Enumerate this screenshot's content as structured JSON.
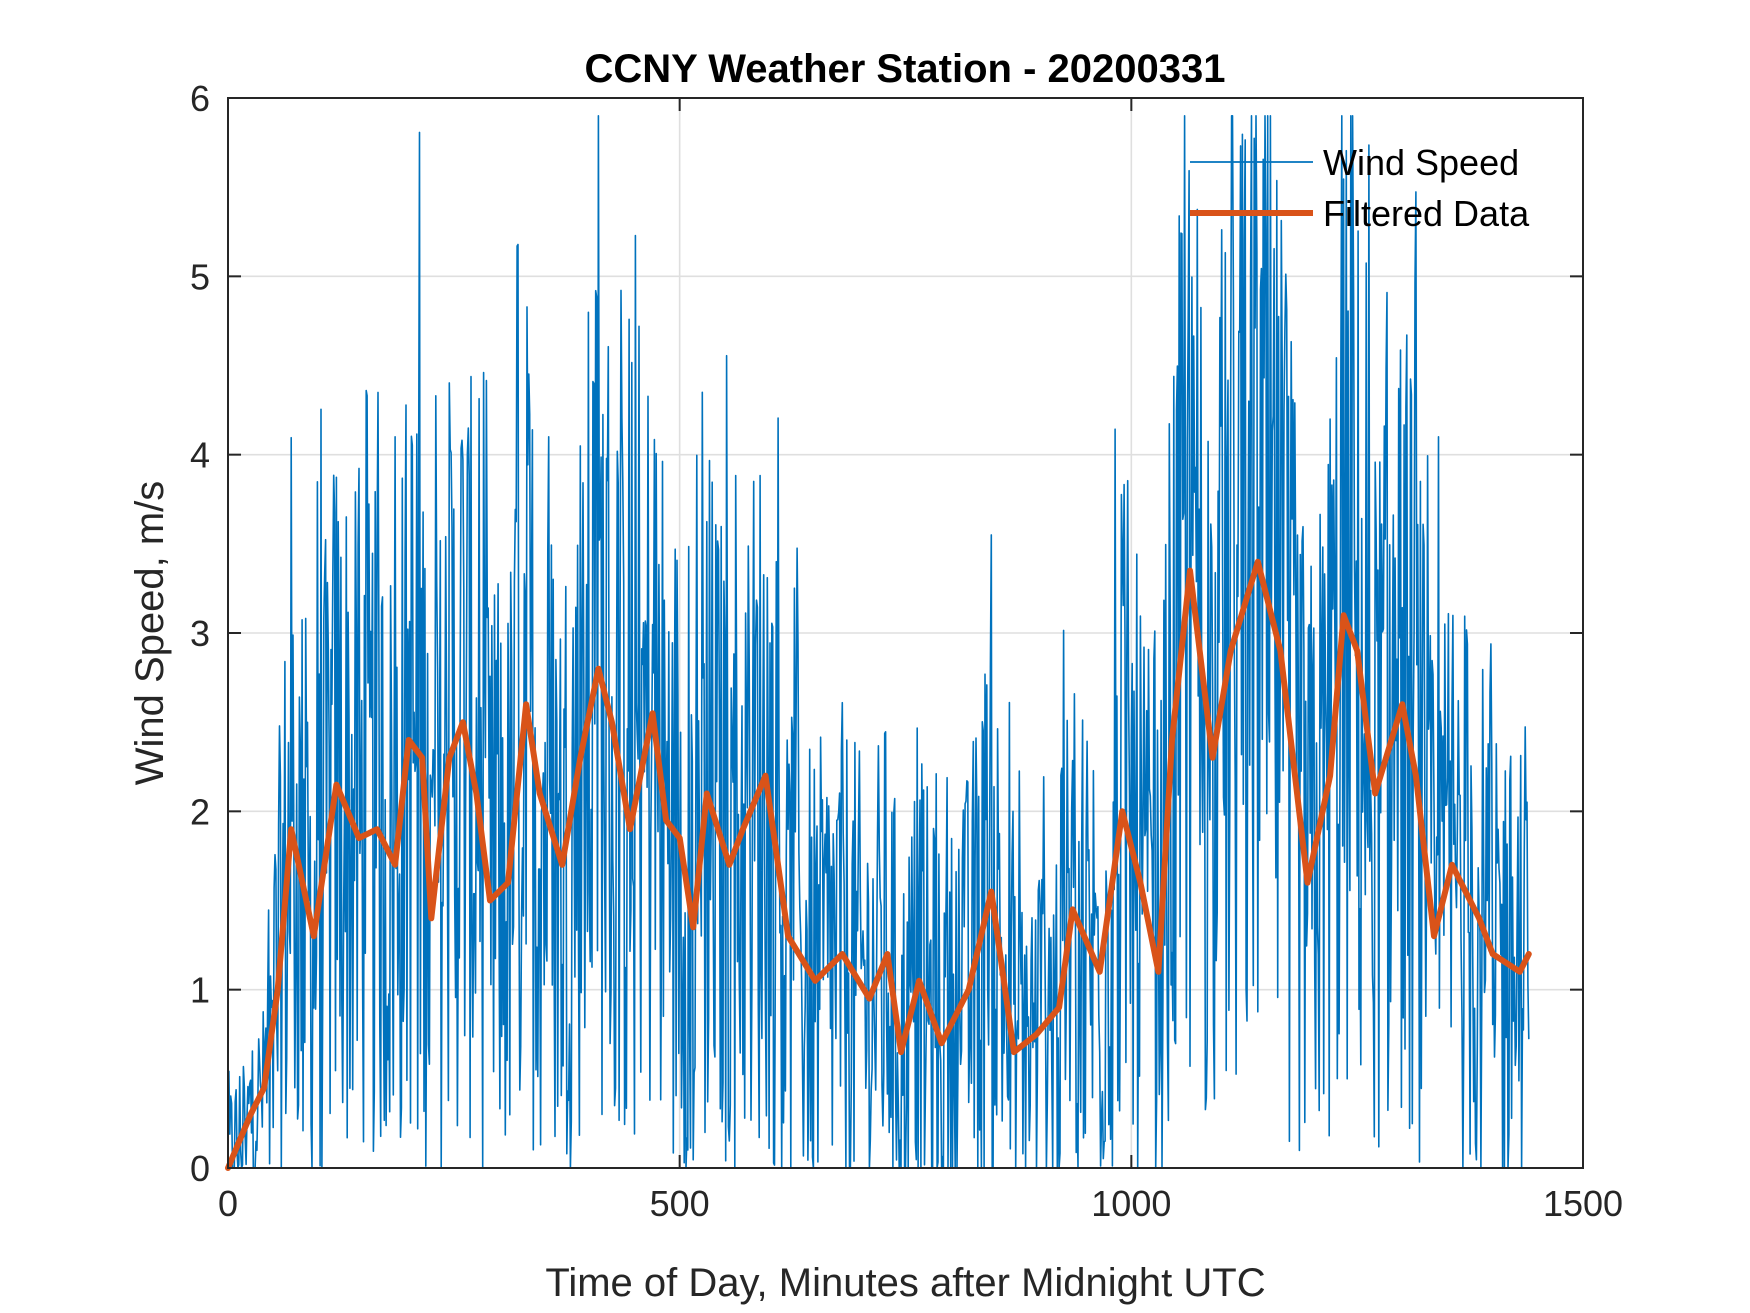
{
  "chart_data": {
    "type": "line",
    "title": "CCNY Weather Station - 20200331",
    "xlabel": "Time of Day, Minutes after Midnight UTC",
    "ylabel": "Wind Speed, m/s",
    "xlim": [
      0,
      1500
    ],
    "ylim": [
      0,
      6
    ],
    "xticks": [
      0,
      500,
      1000,
      1500
    ],
    "xtick_labels": [
      "0",
      "500",
      "1000",
      "1500"
    ],
    "yticks": [
      0,
      1,
      2,
      3,
      4,
      5,
      6
    ],
    "ytick_labels": [
      "0",
      "1",
      "2",
      "3",
      "4",
      "5",
      "6"
    ],
    "grid": true,
    "legend": {
      "position": "top-right",
      "entries": [
        "Wind Speed",
        "Filtered Data"
      ]
    },
    "series": [
      {
        "name": "Wind Speed",
        "color": "#0072BD",
        "note": "raw 1-minute samples, approximated (envelope + notable peaks)",
        "peaks": [
          {
            "x": 185,
            "y": 4.1
          },
          {
            "x": 230,
            "y": 4.33
          },
          {
            "x": 320,
            "y": 5.17
          },
          {
            "x": 355,
            "y": 4.1
          },
          {
            "x": 405,
            "y": 4.4
          },
          {
            "x": 455,
            "y": 4.72
          },
          {
            "x": 525,
            "y": 4.35
          },
          {
            "x": 1050,
            "y": 4.25
          },
          {
            "x": 1110,
            "y": 4.43
          },
          {
            "x": 1130,
            "y": 4.3
          },
          {
            "x": 1220,
            "y": 4.2
          },
          {
            "x": 1340,
            "y": 4.1
          }
        ],
        "troughs": [
          {
            "x": 20,
            "y": 0.02
          },
          {
            "x": 210,
            "y": 0.22
          },
          {
            "x": 428,
            "y": 0.35
          },
          {
            "x": 790,
            "y": 0.0
          },
          {
            "x": 880,
            "y": 0.08
          },
          {
            "x": 1175,
            "y": 0.15
          }
        ]
      },
      {
        "name": "Filtered Data",
        "color": "#D95319",
        "x": [
          0,
          25,
          40,
          55,
          70,
          95,
          120,
          145,
          165,
          185,
          200,
          215,
          225,
          245,
          260,
          275,
          290,
          310,
          330,
          345,
          370,
          390,
          410,
          425,
          445,
          470,
          485,
          500,
          515,
          530,
          555,
          570,
          595,
          620,
          650,
          680,
          710,
          730,
          745,
          765,
          790,
          820,
          845,
          870,
          895,
          920,
          935,
          965,
          990,
          1010,
          1030,
          1045,
          1065,
          1090,
          1110,
          1140,
          1165,
          1195,
          1220,
          1235,
          1250,
          1270,
          1300,
          1315,
          1335,
          1355,
          1385,
          1400,
          1430,
          1440
        ],
        "y": [
          0,
          0.3,
          0.45,
          1.0,
          1.9,
          1.3,
          2.15,
          1.85,
          1.9,
          1.7,
          2.4,
          2.3,
          1.4,
          2.3,
          2.5,
          2.1,
          1.5,
          1.6,
          2.6,
          2.1,
          1.7,
          2.3,
          2.8,
          2.5,
          1.9,
          2.55,
          1.95,
          1.85,
          1.35,
          2.1,
          1.7,
          1.9,
          2.2,
          1.3,
          1.05,
          1.2,
          0.95,
          1.2,
          0.65,
          1.05,
          0.7,
          1.0,
          1.55,
          0.65,
          0.75,
          0.9,
          1.45,
          1.1,
          2.0,
          1.6,
          1.1,
          2.4,
          3.35,
          2.3,
          2.9,
          3.4,
          2.9,
          1.6,
          2.2,
          3.1,
          2.9,
          2.1,
          2.6,
          2.2,
          1.3,
          1.7,
          1.4,
          1.2,
          1.1,
          1.2
        ]
      }
    ]
  }
}
